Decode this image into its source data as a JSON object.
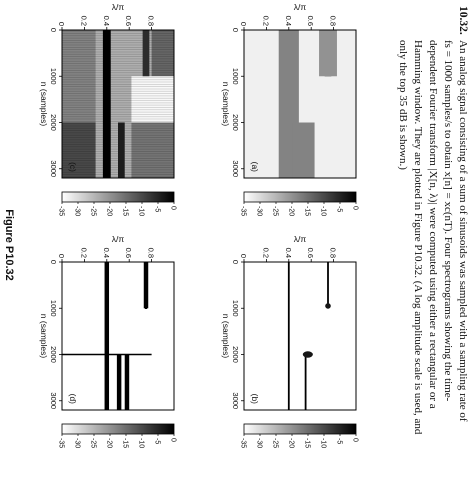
{
  "problem": {
    "number": "10.32.",
    "lines": [
      "An analog signal consisting of a sum of sinusoids was sampled with a sampling rate of",
      "fs = 1000 samples/s to obtain x[n] = xc(nT). Four spectrograms showing the time-",
      "dependent Fourier transform |X[n, λ)| were computed using either a rectangular or a",
      "Hamming window. They are plotted in Figure P10.32. (A log amplitude scale is used, and",
      "only the top 35 dB is shown.)"
    ]
  },
  "figure_caption": "Figure P10.32",
  "chart_data": [
    {
      "type": "heatmap",
      "panel_label": "(a)",
      "ylabel": "λ/π",
      "xlabel": "n (samples)",
      "xlim": [
        0,
        3200
      ],
      "ylim": [
        0,
        1
      ],
      "xticks": [
        0,
        1000,
        2000,
        3000
      ],
      "yticks": [
        0,
        0.2,
        0.4,
        0.6,
        0.8
      ],
      "colorbar": {
        "ticks": [
          0,
          -5,
          -10,
          -15,
          -20,
          -25,
          -30,
          -35
        ],
        "range_db": [
          -35,
          0
        ]
      },
      "background_level_db": -33,
      "bands": [
        {
          "center": 0.4,
          "halfwidth": 0.03,
          "n_start": 0,
          "n_end": 3200,
          "level_db": 0
        },
        {
          "center": 0.4,
          "halfwidth": 0.09,
          "n_start": 0,
          "n_end": 3200,
          "level_db": -18
        },
        {
          "center": 0.75,
          "halfwidth": 0.03,
          "n_start": 0,
          "n_end": 1000,
          "level_db": 0
        },
        {
          "center": 0.75,
          "halfwidth": 0.08,
          "n_start": 0,
          "n_end": 1000,
          "level_db": -20
        },
        {
          "center": 0.53,
          "halfwidth": 0.03,
          "n_start": 2000,
          "n_end": 3200,
          "level_db": 0
        },
        {
          "center": 0.53,
          "halfwidth": 0.1,
          "n_start": 2000,
          "n_end": 3200,
          "level_db": -18
        }
      ]
    },
    {
      "type": "heatmap",
      "panel_label": "(b)",
      "ylabel": "λ/π",
      "xlabel": "n (samples)",
      "xlim": [
        0,
        3200
      ],
      "ylim": [
        0,
        1
      ],
      "xticks": [
        0,
        1000,
        2000,
        3000
      ],
      "yticks": [
        0,
        0.2,
        0.4,
        0.6,
        0.8
      ],
      "colorbar": {
        "ticks": [
          0,
          -5,
          -10,
          -15,
          -20,
          -25,
          -30,
          -35
        ],
        "range_db": [
          -35,
          0
        ]
      },
      "background_level_db": -35,
      "bands": [
        {
          "center": 0.4,
          "halfwidth": 0.008,
          "n_start": 0,
          "n_end": 3200,
          "level_db": 0
        },
        {
          "center": 0.75,
          "halfwidth": 0.008,
          "n_start": 0,
          "n_end": 900,
          "level_db": 0
        },
        {
          "center": 0.55,
          "halfwidth": 0.008,
          "n_start": 2050,
          "n_end": 3200,
          "level_db": 0
        }
      ],
      "blobs": [
        {
          "n": 950,
          "f": 0.75,
          "rx": 60,
          "ry": 0.025,
          "level_db": -3
        },
        {
          "n": 2000,
          "f": 0.57,
          "rx": 70,
          "ry": 0.045,
          "level_db": -3
        }
      ]
    },
    {
      "type": "heatmap",
      "panel_label": "(c)",
      "ylabel": "λ/π",
      "xlabel": "n (samples)",
      "xlim": [
        0,
        3200
      ],
      "ylim": [
        0,
        1
      ],
      "xticks": [
        0,
        1000,
        2000,
        3000
      ],
      "yticks": [
        0,
        0.2,
        0.4,
        0.6,
        0.8
      ],
      "colorbar": {
        "ticks": [
          0,
          -5,
          -10,
          -15,
          -20,
          -25,
          -30,
          -35
        ],
        "range_db": [
          -35,
          0
        ]
      },
      "background_level_db": -24,
      "regions": [
        {
          "n_start": 0,
          "n_end": 1000,
          "f_start": 0.8,
          "f_end": 1.0,
          "level_db": -14
        },
        {
          "n_start": 1000,
          "n_end": 2000,
          "f_start": 0.62,
          "f_end": 1.0,
          "level_db": -34
        },
        {
          "n_start": 2000,
          "n_end": 3200,
          "f_start": 0.62,
          "f_end": 1.0,
          "level_db": -16
        },
        {
          "n_start": 2000,
          "n_end": 3200,
          "f_start": 0.0,
          "f_end": 0.3,
          "level_db": -10
        },
        {
          "n_start": 0,
          "n_end": 2000,
          "f_start": 0.0,
          "f_end": 0.3,
          "level_db": -18
        }
      ],
      "bands": [
        {
          "center": 0.4,
          "halfwidth": 0.035,
          "n_start": 0,
          "n_end": 3200,
          "level_db": 0
        },
        {
          "center": 0.75,
          "halfwidth": 0.03,
          "n_start": 0,
          "n_end": 1000,
          "level_db": -6
        },
        {
          "center": 0.53,
          "halfwidth": 0.03,
          "n_start": 2000,
          "n_end": 3200,
          "level_db": -4
        }
      ]
    },
    {
      "type": "heatmap",
      "panel_label": "(d)",
      "ylabel": "λ/π",
      "xlabel": "n (samples)",
      "xlim": [
        0,
        3200
      ],
      "ylim": [
        0,
        1
      ],
      "xticks": [
        0,
        1000,
        2000,
        3000
      ],
      "yticks": [
        0,
        0.2,
        0.4,
        0.6,
        0.8
      ],
      "colorbar": {
        "ticks": [
          0,
          -5,
          -10,
          -15,
          -20,
          -25,
          -30,
          -35
        ],
        "range_db": [
          -35,
          0
        ]
      },
      "background_level_db": -35,
      "bands": [
        {
          "center": 0.4,
          "halfwidth": 0.02,
          "n_start": 0,
          "n_end": 3200,
          "level_db": 0
        },
        {
          "center": 0.75,
          "halfwidth": 0.02,
          "n_start": 0,
          "n_end": 1000,
          "level_db": 0
        },
        {
          "center": 0.51,
          "halfwidth": 0.02,
          "n_start": 2000,
          "n_end": 3200,
          "level_db": 0
        },
        {
          "center": 0.58,
          "halfwidth": 0.02,
          "n_start": 2000,
          "n_end": 3200,
          "level_db": 0
        }
      ],
      "spikes": [
        {
          "n": 1000,
          "f_start": 0.74,
          "f_end": 0.76
        },
        {
          "n": 2000,
          "f_start": 0.0,
          "f_end": 0.8
        }
      ]
    }
  ]
}
